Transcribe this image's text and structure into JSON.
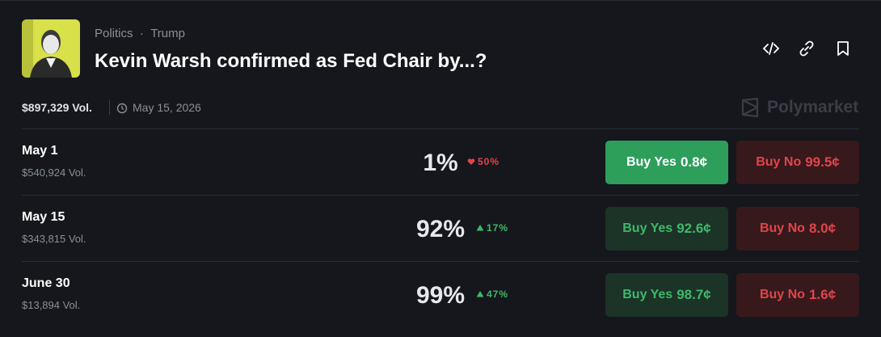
{
  "header": {
    "category": "Politics",
    "tag": "Trump",
    "title": "Kevin Warsh confirmed as Fed Chair by...?"
  },
  "meta": {
    "volume": "$897,329 Vol.",
    "date": "May 15, 2026",
    "brand": "Polymarket"
  },
  "rows": [
    {
      "name": "May 1",
      "volume": "$540,924 Vol.",
      "chance": "1%",
      "change": "50%",
      "direction": "down",
      "highlight": true,
      "yes_label": "Buy Yes",
      "yes_price": "0.8¢",
      "no_label": "Buy No",
      "no_price": "99.5¢"
    },
    {
      "name": "May 15",
      "volume": "$343,815 Vol.",
      "chance": "92%",
      "change": "17%",
      "direction": "up",
      "highlight": false,
      "yes_label": "Buy Yes",
      "yes_price": "92.6¢",
      "no_label": "Buy No",
      "no_price": "8.0¢"
    },
    {
      "name": "June 30",
      "volume": "$13,894 Vol.",
      "chance": "99%",
      "change": "47%",
      "direction": "up",
      "highlight": false,
      "yes_label": "Buy Yes",
      "yes_price": "98.7¢",
      "no_label": "Buy No",
      "no_price": "1.6¢"
    }
  ]
}
